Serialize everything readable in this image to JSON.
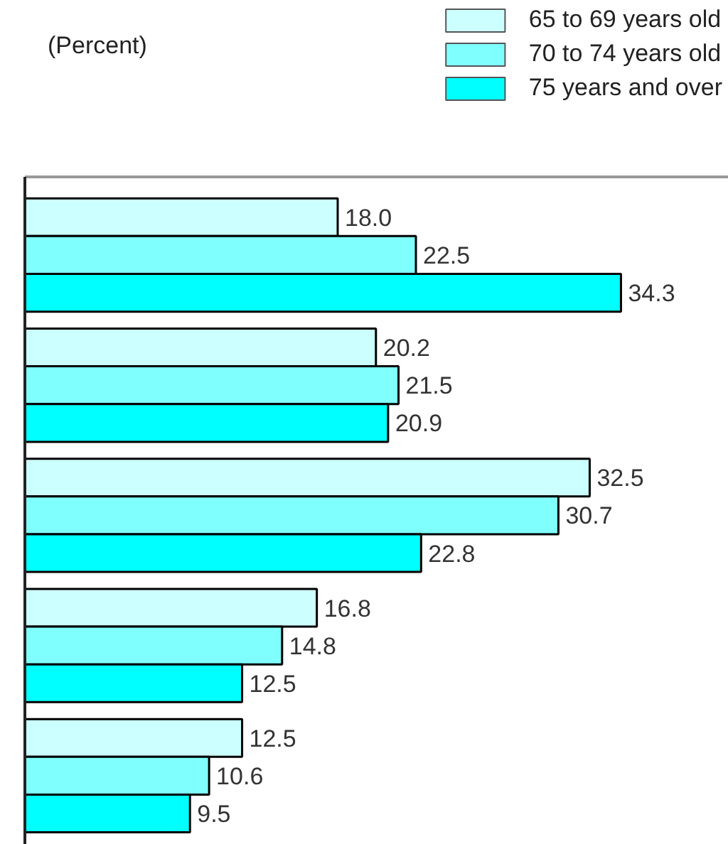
{
  "chart_data": {
    "type": "bar",
    "orientation": "horizontal",
    "categories": [
      null,
      null,
      null,
      null,
      null
    ],
    "series": [
      {
        "name": "65 to 69 years old",
        "color": "#ccffff",
        "values": [
          18.0,
          20.2,
          32.5,
          16.8,
          12.5
        ],
        "value_labels": [
          "18.0",
          "20.2",
          "32.5",
          "16.8",
          "12.5"
        ]
      },
      {
        "name": "70 to 74 years old",
        "color": "#80ffff",
        "values": [
          22.5,
          21.5,
          30.7,
          14.8,
          10.6
        ],
        "value_labels": [
          "22.5",
          "21.5",
          "30.7",
          "14.8",
          "10.6"
        ]
      },
      {
        "name": "75 years and over",
        "color": "#00ffff",
        "values": [
          34.3,
          20.9,
          22.8,
          12.5,
          9.5
        ],
        "value_labels": [
          "34.3",
          "20.9",
          "22.8",
          "12.5",
          "9.5"
        ]
      }
    ],
    "xlim": [
      0,
      40.5
    ],
    "legend": "top right",
    "tick_labels": false,
    "annotations": [
      "(Percent)"
    ]
  }
}
